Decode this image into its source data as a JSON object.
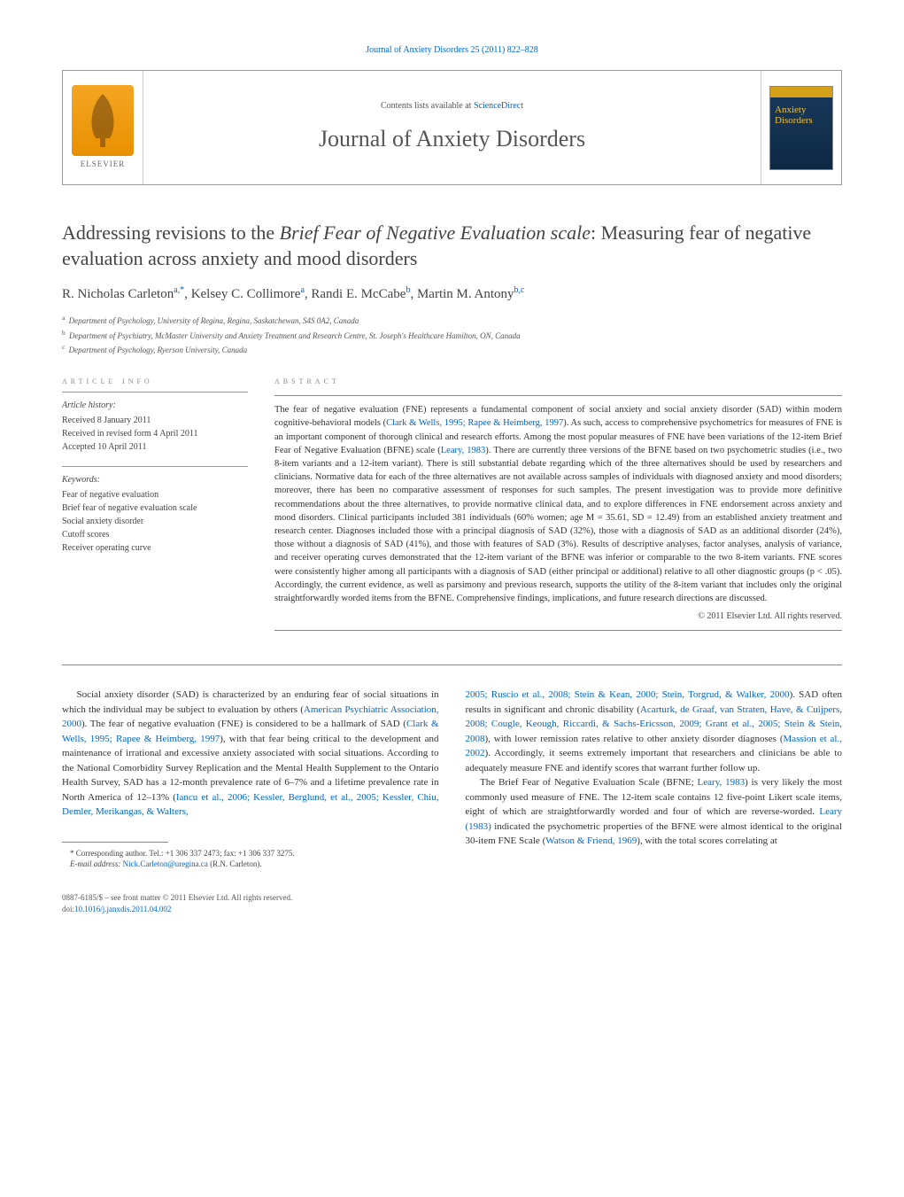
{
  "header": {
    "citation": "Journal of Anxiety Disorders 25 (2011) 822–828",
    "contents_prefix": "Contents lists available at ",
    "contents_link": "ScienceDirect",
    "journal_title": "Journal of Anxiety Disorders",
    "publisher": "ELSEVIER",
    "cover_title_line1": "Anxiety",
    "cover_title_line2": "Disorders"
  },
  "article": {
    "title_prefix": "Addressing revisions to the ",
    "title_italic": "Brief Fear of Negative Evaluation scale",
    "title_suffix": ": Measuring fear of negative evaluation across anxiety and mood disorders",
    "authors_html": "R. Nicholas Carleton<sup>a,*</sup>, Kelsey C. Collimore<sup>a</sup>, Randi E. McCabe<sup>b</sup>, Martin M. Antony<sup>b,c</sup>",
    "affiliations": [
      {
        "sup": "a",
        "text": "Department of Psychology, University of Regina, Regina, Saskatchewan, S4S 0A2, Canada"
      },
      {
        "sup": "b",
        "text": "Department of Psychiatry, McMaster University and Anxiety Treatment and Research Centre, St. Joseph's Healthcare Hamilton, ON, Canada"
      },
      {
        "sup": "c",
        "text": "Department of Psychology, Ryerson University, Canada"
      }
    ]
  },
  "info": {
    "heading": "article info",
    "history_label": "Article history:",
    "history": [
      "Received 8 January 2011",
      "Received in revised form 4 April 2011",
      "Accepted 10 April 2011"
    ],
    "keywords_label": "Keywords:",
    "keywords": [
      "Fear of negative evaluation",
      "Brief fear of negative evaluation scale",
      "Social anxiety disorder",
      "Cutoff scores",
      "Receiver operating curve"
    ]
  },
  "abstract": {
    "heading": "abstract",
    "text_parts": [
      "The fear of negative evaluation (FNE) represents a fundamental component of social anxiety and social anxiety disorder (SAD) within modern cognitive-behavioral models (",
      "Clark & Wells, 1995; Rapee & Heimberg, 1997",
      "). As such, access to comprehensive psychometrics for measures of FNE is an important component of thorough clinical and research efforts. Among the most popular measures of FNE have been variations of the 12-item Brief Fear of Negative Evaluation (BFNE) scale (",
      "Leary, 1983",
      "). There are currently three versions of the BFNE based on two psychometric studies (i.e., two 8-item variants and a 12-item variant). There is still substantial debate regarding which of the three alternatives should be used by researchers and clinicians. Normative data for each of the three alternatives are not available across samples of individuals with diagnosed anxiety and mood disorders; moreover, there has been no comparative assessment of responses for such samples. The present investigation was to provide more definitive recommendations about the three alternatives, to provide normative clinical data, and to explore differences in FNE endorsement across anxiety and mood disorders. Clinical participants included 381 individuals (60% women; age M = 35.61, SD = 12.49) from an established anxiety treatment and research center. Diagnoses included those with a principal diagnosis of SAD (32%), those with a diagnosis of SAD as an additional disorder (24%), those without a diagnosis of SAD (41%), and those with features of SAD (3%). Results of descriptive analyses, factor analyses, analysis of variance, and receiver operating curves demonstrated that the 12-item variant of the BFNE was inferior or comparable to the two 8-item variants. FNE scores were consistently higher among all participants with a diagnosis of SAD (either principal or additional) relative to all other diagnostic groups (p < .05). Accordingly, the current evidence, as well as parsimony and previous research, supports the utility of the 8-item variant that includes only the original straightforwardly worded items from the BFNE. Comprehensive findings, implications, and future research directions are discussed."
    ],
    "copyright": "© 2011 Elsevier Ltd. All rights reserved."
  },
  "body": {
    "col1": {
      "p1_parts": [
        "Social anxiety disorder (SAD) is characterized by an enduring fear of social situations in which the individual may be subject to evaluation by others (",
        "American Psychiatric Association, 2000",
        "). The fear of negative evaluation (FNE) is considered to be a hallmark of SAD (",
        "Clark & Wells, 1995; Rapee & Heimberg, 1997",
        "), with that fear being critical to the development and maintenance of irrational and excessive anxiety associated with social situations. According to the National Comorbidity Survey Replication and the Mental Health Supplement to the Ontario Health Survey, SAD has a 12-month prevalence rate of 6–7% and a lifetime prevalence rate in North America of 12–13% (",
        "Iancu et al., 2006; Kessler, Berglund, et al., 2005; Kessler, Chiu, Demler, Merikangas, & Walters,"
      ]
    },
    "col2": {
      "p1_parts": [
        "2005; Ruscio et al., 2008; Stein & Kean, 2000; Stein, Torgrud, & Walker, 2000",
        "). SAD often results in significant and chronic disability (",
        "Acarturk, de Graaf, van Straten, Have, & Cuijpers, 2008; Cougle, Keough, Riccardi, & Sachs-Ericsson, 2009; Grant et al., 2005; Stein & Stein, 2008",
        "), with lower remission rates relative to other anxiety disorder diagnoses (",
        "Massion et al., 2002",
        "). Accordingly, it seems extremely important that researchers and clinicians be able to adequately measure FNE and identify scores that warrant further follow up."
      ],
      "p2_parts": [
        "The Brief Fear of Negative Evaluation Scale (BFNE; ",
        "Leary, 1983",
        ") is very likely the most commonly used measure of FNE. The 12-item scale contains 12 five-point Likert scale items, eight of which are straightforwardly worded and four of which are reverse-worded. ",
        "Leary (1983)",
        " indicated the psychometric properties of the BFNE were almost identical to the original 30-item FNE Scale (",
        "Watson & Friend, 1969",
        "), with the total scores correlating at"
      ]
    }
  },
  "footnote": {
    "corr_label": "* Corresponding author. Tel.: +1 306 337 2473; fax: +1 306 337 3275.",
    "email_label": "E-mail address: ",
    "email": "Nick.Carleton@uregina.ca",
    "email_suffix": " (R.N. Carleton)."
  },
  "footer": {
    "line1": "0887-6185/$ – see front matter © 2011 Elsevier Ltd. All rights reserved.",
    "doi_label": "doi:",
    "doi": "10.1016/j.janxdis.2011.04.002"
  },
  "colors": {
    "link": "#0066cc",
    "text": "#333333",
    "muted": "#888888",
    "elsevier_orange": "#f5a623",
    "cover_bg": "#1a3a5c",
    "cover_accent": "#d4a017"
  }
}
